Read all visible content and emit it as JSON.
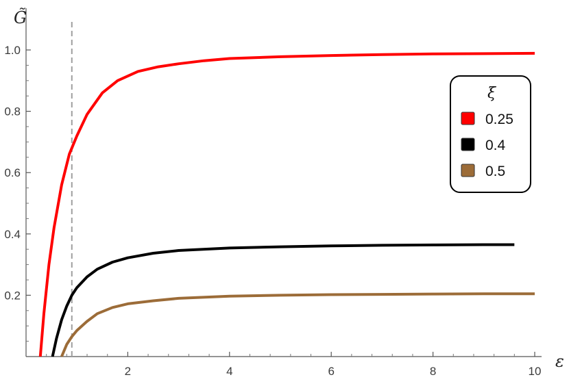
{
  "chart_data": {
    "type": "line",
    "xlabel": "ε",
    "ylabel": "G̃",
    "xlim": [
      0,
      10
    ],
    "ylim": [
      0,
      1.05
    ],
    "x_ticks": [
      2,
      4,
      6,
      8,
      10
    ],
    "y_ticks": [
      0.2,
      0.4,
      0.6,
      0.8,
      1.0
    ],
    "x_tick_labels": [
      "2",
      "4",
      "6",
      "8",
      "10"
    ],
    "y_tick_labels": [
      "0.2",
      "0.4",
      "0.6",
      "0.8",
      "1.0"
    ],
    "reference_line": {
      "x": 0.9,
      "style": "dashed",
      "color": "#9e9e9e"
    },
    "legend": {
      "title": "ξ",
      "placement": "right"
    },
    "series": [
      {
        "name": "0.25",
        "color": "#ff0000",
        "x": [
          0.28,
          0.35,
          0.45,
          0.55,
          0.7,
          0.85,
          1.0,
          1.2,
          1.5,
          1.8,
          2.2,
          2.6,
          3.0,
          3.5,
          4.0,
          5.0,
          6.0,
          7.0,
          8.0,
          9.0,
          10.0
        ],
        "y": [
          0.0,
          0.14,
          0.3,
          0.42,
          0.56,
          0.66,
          0.72,
          0.79,
          0.86,
          0.9,
          0.93,
          0.945,
          0.955,
          0.965,
          0.972,
          0.978,
          0.982,
          0.985,
          0.987,
          0.988,
          0.989
        ]
      },
      {
        "name": "0.4",
        "color": "#000000",
        "x": [
          0.52,
          0.6,
          0.7,
          0.8,
          0.9,
          1.0,
          1.2,
          1.4,
          1.7,
          2.0,
          2.5,
          3.0,
          4.0,
          5.0,
          6.0,
          7.0,
          8.0,
          9.0,
          9.6
        ],
        "y": [
          0.0,
          0.06,
          0.12,
          0.165,
          0.2,
          0.225,
          0.26,
          0.285,
          0.308,
          0.322,
          0.337,
          0.346,
          0.354,
          0.358,
          0.361,
          0.363,
          0.364,
          0.365,
          0.365
        ]
      },
      {
        "name": "0.5",
        "color": "#9c6c38",
        "x": [
          0.7,
          0.8,
          0.9,
          1.0,
          1.2,
          1.4,
          1.7,
          2.0,
          2.5,
          3.0,
          4.0,
          5.0,
          6.0,
          7.0,
          8.0,
          9.0,
          10.0
        ],
        "y": [
          0.0,
          0.04,
          0.065,
          0.085,
          0.115,
          0.14,
          0.16,
          0.172,
          0.182,
          0.19,
          0.197,
          0.2,
          0.202,
          0.203,
          0.204,
          0.205,
          0.205
        ]
      }
    ]
  }
}
